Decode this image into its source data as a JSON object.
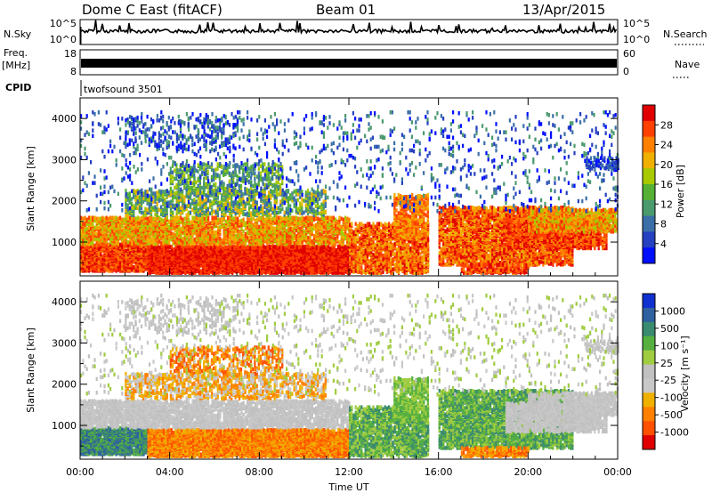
{
  "header": {
    "station": "Dome C East (fitACF)",
    "beam": "Beam 01",
    "date": "13/Apr/2015"
  },
  "strip": {
    "nsky_label": "N.Sky",
    "nsky_ticks": [
      "10^5",
      "10^0"
    ],
    "nsearch_label": "N.Search",
    "nsearch_ticks": [
      "10^5",
      "10^0"
    ],
    "freq_label_top": "Freq.",
    "freq_label_unit": "[MHz]",
    "freq_ticks": [
      "18",
      "8"
    ],
    "nave_label": "Nave",
    "nave_ticks": [
      "60",
      "0"
    ],
    "cpid_label": "CPID",
    "cpid_value": "twofsound 3501"
  },
  "chart_data": [
    {
      "type": "heatmap",
      "name": "power-panel",
      "ylabel": "Slant Range [km]",
      "xlabel": "",
      "yticks": [
        "4000",
        "3000",
        "2000",
        "1000"
      ],
      "ylim": [
        180,
        4500
      ],
      "xlim": [
        0,
        24
      ],
      "colorbar_label": "Power [dB]",
      "colorbar_ticks": [
        "28",
        "24",
        "20",
        "16",
        "12",
        "8",
        "4"
      ],
      "colorbar_colors": [
        "#e00000",
        "#ff4000",
        "#ff8000",
        "#f0b000",
        "#a8c800",
        "#55b035",
        "#4a9a6e",
        "#3a6fa8",
        "#2540c0",
        "#0010ff"
      ]
    },
    {
      "type": "heatmap",
      "name": "velocity-panel",
      "ylabel": "Slant Range [km]",
      "xlabel": "Time UT",
      "yticks": [
        "4000",
        "3000",
        "2000",
        "1000"
      ],
      "ylim": [
        180,
        4500
      ],
      "xlim": [
        0,
        24
      ],
      "xticks": [
        "00:00",
        "04:00",
        "08:00",
        "12:00",
        "16:00",
        "20:00",
        "00:00"
      ],
      "colorbar_label": "Velocity [m s⁻¹]",
      "colorbar_ticks": [
        "1000",
        "500",
        "100",
        "25",
        "-25",
        "-100",
        "-500",
        "-1000"
      ],
      "colorbar_colors": [
        "#1030d0",
        "#2f60a0",
        "#3a8a70",
        "#55b040",
        "#a0cc40",
        "#c0c0c0",
        "#c8c8c8",
        "#f0b000",
        "#ff8000",
        "#ff5000",
        "#e00000"
      ]
    }
  ]
}
